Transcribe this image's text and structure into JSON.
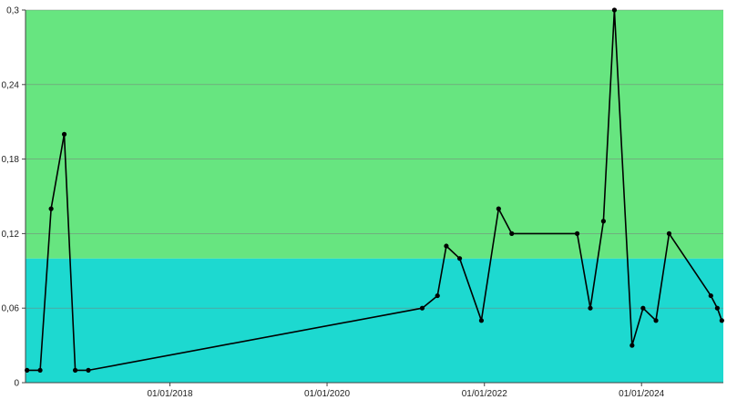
{
  "chart_data": {
    "type": "line",
    "title": "",
    "xlabel": "",
    "ylabel": "",
    "ylim": [
      0,
      0.3
    ],
    "y_ticks": [
      {
        "value": 0,
        "label": "0"
      },
      {
        "value": 0.06,
        "label": "0,06"
      },
      {
        "value": 0.12,
        "label": "0,12"
      },
      {
        "value": 0.18,
        "label": "0,18"
      },
      {
        "value": 0.24,
        "label": "0,24"
      },
      {
        "value": 0.3,
        "label": "0,3"
      }
    ],
    "xlim": [
      "2016-03-01",
      "2025-01-15"
    ],
    "x_ticks": [
      {
        "value": "2018-01-01",
        "label": "01/01/2018"
      },
      {
        "value": "2020-01-01",
        "label": "01/01/2020"
      },
      {
        "value": "2022-01-01",
        "label": "01/01/2022"
      },
      {
        "value": "2024-01-01",
        "label": "01/01/2024"
      }
    ],
    "grid": "horizontal",
    "bands": [
      {
        "from": 0,
        "to": 0.1,
        "color": "#1dd9d0"
      },
      {
        "from": 0.1,
        "to": 0.3,
        "color": "#67e580"
      }
    ],
    "series": [
      {
        "color": "#000000",
        "points": [
          {
            "x": "2016-03-08",
            "y": 0.01
          },
          {
            "x": "2016-05-08",
            "y": 0.01
          },
          {
            "x": "2016-06-28",
            "y": 0.14
          },
          {
            "x": "2016-08-28",
            "y": 0.2
          },
          {
            "x": "2016-10-18",
            "y": 0.01
          },
          {
            "x": "2016-12-18",
            "y": 0.01
          },
          {
            "x": "2021-03-18",
            "y": 0.06
          },
          {
            "x": "2021-05-28",
            "y": 0.07
          },
          {
            "x": "2021-07-08",
            "y": 0.11
          },
          {
            "x": "2021-09-08",
            "y": 0.1
          },
          {
            "x": "2021-12-18",
            "y": 0.05
          },
          {
            "x": "2022-03-08",
            "y": 0.14
          },
          {
            "x": "2022-05-08",
            "y": 0.12
          },
          {
            "x": "2023-03-08",
            "y": 0.12
          },
          {
            "x": "2023-05-08",
            "y": 0.06
          },
          {
            "x": "2023-07-08",
            "y": 0.13
          },
          {
            "x": "2023-08-28",
            "y": 0.3
          },
          {
            "x": "2023-11-18",
            "y": 0.03
          },
          {
            "x": "2024-01-08",
            "y": 0.06
          },
          {
            "x": "2024-03-08",
            "y": 0.05
          },
          {
            "x": "2024-05-08",
            "y": 0.12
          },
          {
            "x": "2024-11-18",
            "y": 0.07
          },
          {
            "x": "2024-12-18",
            "y": 0.06
          },
          {
            "x": "2025-01-08",
            "y": 0.05
          }
        ]
      }
    ]
  }
}
